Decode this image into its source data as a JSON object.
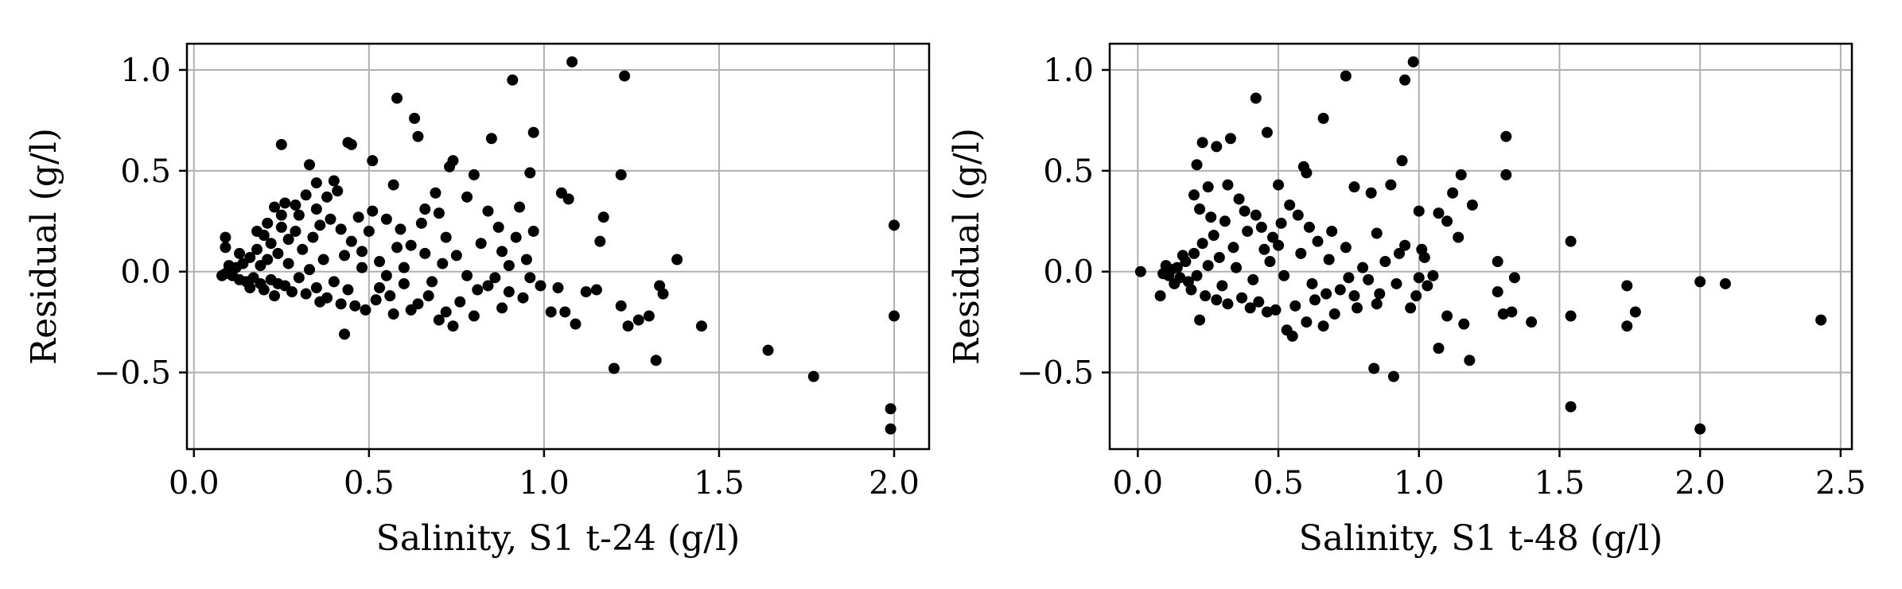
{
  "chart_data": [
    {
      "type": "scatter",
      "xlabel": "Salinity, S1 t-24 (g/l)",
      "ylabel": "Residual (g/l)",
      "xlim": [
        -0.02,
        2.1
      ],
      "ylim": [
        -0.88,
        1.13
      ],
      "xticks": [
        0.0,
        0.5,
        1.0,
        1.5,
        2.0
      ],
      "xtick_labels": [
        "0.0",
        "0.5",
        "1.0",
        "1.5",
        "2.0"
      ],
      "yticks": [
        -0.5,
        0.0,
        0.5,
        1.0
      ],
      "ytick_labels": [
        "−0.5",
        "0.0",
        "0.5",
        "1.0"
      ],
      "grid": true,
      "marker_color": "#000000",
      "points": [
        [
          1.08,
          1.04
        ],
        [
          1.23,
          0.97
        ],
        [
          0.91,
          0.95
        ],
        [
          0.58,
          0.86
        ],
        [
          0.63,
          0.76
        ],
        [
          0.64,
          0.67
        ],
        [
          0.97,
          0.69
        ],
        [
          0.85,
          0.66
        ],
        [
          0.44,
          0.64
        ],
        [
          0.45,
          0.63
        ],
        [
          0.25,
          0.63
        ],
        [
          0.51,
          0.55
        ],
        [
          0.74,
          0.55
        ],
        [
          0.73,
          0.52
        ],
        [
          0.33,
          0.53
        ],
        [
          0.96,
          0.49
        ],
        [
          1.22,
          0.48
        ],
        [
          0.8,
          0.48
        ],
        [
          0.57,
          0.43
        ],
        [
          0.4,
          0.45
        ],
        [
          0.35,
          0.44
        ],
        [
          0.41,
          0.4
        ],
        [
          0.38,
          0.37
        ],
        [
          1.05,
          0.39
        ],
        [
          1.07,
          0.36
        ],
        [
          0.69,
          0.39
        ],
        [
          0.32,
          0.38
        ],
        [
          0.29,
          0.33
        ],
        [
          0.26,
          0.34
        ],
        [
          0.23,
          0.32
        ],
        [
          0.93,
          0.32
        ],
        [
          0.78,
          0.37
        ],
        [
          0.66,
          0.31
        ],
        [
          0.7,
          0.29
        ],
        [
          0.84,
          0.3
        ],
        [
          1.17,
          0.27
        ],
        [
          0.97,
          0.2
        ],
        [
          1.16,
          0.15
        ],
        [
          0.92,
          0.17
        ],
        [
          0.88,
          0.1
        ],
        [
          1.38,
          0.06
        ],
        [
          2.0,
          0.23
        ],
        [
          2.0,
          -0.22
        ],
        [
          1.99,
          -0.68
        ],
        [
          1.99,
          -0.78
        ],
        [
          1.77,
          -0.52
        ],
        [
          1.64,
          -0.39
        ],
        [
          1.45,
          -0.27
        ],
        [
          1.32,
          -0.44
        ],
        [
          1.2,
          -0.48
        ],
        [
          1.34,
          -0.11
        ],
        [
          1.33,
          -0.07
        ],
        [
          1.3,
          -0.22
        ],
        [
          1.27,
          -0.24
        ],
        [
          1.24,
          -0.27
        ],
        [
          1.22,
          -0.17
        ],
        [
          1.15,
          -0.09
        ],
        [
          1.12,
          -0.1
        ],
        [
          1.09,
          -0.26
        ],
        [
          1.06,
          -0.2
        ],
        [
          1.02,
          -0.2
        ],
        [
          1.04,
          -0.08
        ],
        [
          0.99,
          -0.07
        ],
        [
          0.43,
          -0.31
        ],
        [
          0.74,
          -0.27
        ],
        [
          0.7,
          -0.24
        ],
        [
          0.57,
          -0.21
        ],
        [
          0.62,
          -0.19
        ],
        [
          0.49,
          -0.19
        ],
        [
          0.36,
          -0.15
        ],
        [
          0.23,
          -0.12
        ],
        [
          0.95,
          0.06
        ],
        [
          0.9,
          0.03
        ],
        [
          0.86,
          -0.03
        ],
        [
          0.81,
          -0.09
        ],
        [
          0.76,
          -0.15
        ],
        [
          0.67,
          -0.12
        ],
        [
          0.6,
          -0.06
        ],
        [
          0.55,
          -0.02
        ],
        [
          0.53,
          0.05
        ],
        [
          0.48,
          0.1
        ],
        [
          0.45,
          0.15
        ],
        [
          0.42,
          0.21
        ],
        [
          0.39,
          0.26
        ],
        [
          0.36,
          0.23
        ],
        [
          0.34,
          0.17
        ],
        [
          0.31,
          0.11
        ],
        [
          0.29,
          0.2
        ],
        [
          0.27,
          0.16
        ],
        [
          0.25,
          0.22
        ],
        [
          0.24,
          0.09
        ],
        [
          0.22,
          0.14
        ],
        [
          0.21,
          0.06
        ],
        [
          0.2,
          0.18
        ],
        [
          0.19,
          0.03
        ],
        [
          0.18,
          0.11
        ],
        [
          0.17,
          -0.03
        ],
        [
          0.16,
          0.07
        ],
        [
          0.15,
          -0.05
        ],
        [
          0.14,
          0.04
        ],
        [
          0.13,
          -0.04
        ],
        [
          0.12,
          0.02
        ],
        [
          0.11,
          -0.02
        ],
        [
          0.1,
          0.03
        ],
        [
          0.09,
          -0.01
        ],
        [
          0.09,
          0.17
        ],
        [
          0.09,
          0.12
        ],
        [
          0.08,
          -0.02
        ],
        [
          0.13,
          0.09
        ],
        [
          0.16,
          -0.08
        ],
        [
          0.2,
          -0.09
        ],
        [
          0.24,
          -0.06
        ],
        [
          0.28,
          -0.1
        ],
        [
          0.32,
          -0.11
        ],
        [
          0.38,
          -0.13
        ],
        [
          0.42,
          -0.16
        ],
        [
          0.46,
          -0.17
        ],
        [
          0.52,
          -0.14
        ],
        [
          0.56,
          -0.12
        ],
        [
          0.64,
          -0.16
        ],
        [
          0.72,
          -0.2
        ],
        [
          0.8,
          -0.22
        ],
        [
          0.88,
          -0.18
        ],
        [
          0.94,
          -0.13
        ],
        [
          0.84,
          -0.07
        ],
        [
          0.78,
          -0.02
        ],
        [
          0.71,
          0.04
        ],
        [
          0.66,
          0.09
        ],
        [
          0.62,
          0.13
        ],
        [
          0.59,
          0.21
        ],
        [
          0.55,
          0.26
        ],
        [
          0.51,
          0.3
        ],
        [
          0.47,
          0.27
        ],
        [
          0.43,
          0.08
        ],
        [
          0.4,
          -0.05
        ],
        [
          0.37,
          0.06
        ],
        [
          0.33,
          0.01
        ],
        [
          0.3,
          -0.03
        ],
        [
          0.27,
          0.04
        ],
        [
          0.26,
          -0.07
        ],
        [
          0.22,
          -0.04
        ],
        [
          0.19,
          -0.06
        ],
        [
          0.35,
          0.31
        ],
        [
          0.3,
          0.28
        ],
        [
          0.5,
          0.2
        ],
        [
          0.6,
          0.02
        ],
        [
          0.68,
          -0.05
        ],
        [
          0.75,
          0.08
        ],
        [
          0.82,
          0.14
        ],
        [
          0.87,
          0.22
        ],
        [
          0.9,
          -0.1
        ],
        [
          0.96,
          -0.03
        ],
        [
          0.72,
          0.17
        ],
        [
          0.65,
          0.24
        ],
        [
          0.44,
          -0.09
        ],
        [
          0.48,
          0.02
        ],
        [
          0.53,
          -0.08
        ],
        [
          0.58,
          0.12
        ],
        [
          0.35,
          -0.08
        ],
        [
          0.25,
          0.28
        ],
        [
          0.21,
          0.24
        ],
        [
          0.18,
          0.2
        ]
      ]
    },
    {
      "type": "scatter",
      "xlabel": "Salinity, S1 t-48 (g/l)",
      "ylabel": "Residual (g/l)",
      "xlim": [
        -0.1,
        2.54
      ],
      "ylim": [
        -0.88,
        1.13
      ],
      "xticks": [
        0.0,
        0.5,
        1.0,
        1.5,
        2.0,
        2.5
      ],
      "xtick_labels": [
        "0.0",
        "0.5",
        "1.0",
        "1.5",
        "2.0",
        "2.5"
      ],
      "yticks": [
        -0.5,
        0.0,
        0.5,
        1.0
      ],
      "ytick_labels": [
        "−0.5",
        "0.0",
        "0.5",
        "1.0"
      ],
      "grid": true,
      "marker_color": "#000000",
      "points": [
        [
          0.98,
          1.04
        ],
        [
          0.74,
          0.97
        ],
        [
          0.95,
          0.95
        ],
        [
          0.42,
          0.86
        ],
        [
          0.66,
          0.76
        ],
        [
          0.46,
          0.69
        ],
        [
          0.33,
          0.66
        ],
        [
          0.23,
          0.64
        ],
        [
          1.31,
          0.67
        ],
        [
          0.28,
          0.62
        ],
        [
          0.94,
          0.55
        ],
        [
          0.21,
          0.53
        ],
        [
          0.59,
          0.52
        ],
        [
          0.6,
          0.49
        ],
        [
          1.31,
          0.48
        ],
        [
          1.15,
          0.48
        ],
        [
          0.9,
          0.43
        ],
        [
          0.5,
          0.43
        ],
        [
          0.32,
          0.43
        ],
        [
          0.25,
          0.42
        ],
        [
          0.77,
          0.42
        ],
        [
          0.83,
          0.39
        ],
        [
          1.12,
          0.39
        ],
        [
          1.07,
          0.29
        ],
        [
          1.1,
          0.25
        ],
        [
          1.19,
          0.33
        ],
        [
          1.0,
          0.3
        ],
        [
          1.14,
          0.17
        ],
        [
          0.85,
          0.19
        ],
        [
          1.54,
          0.15
        ],
        [
          0.01,
          0.0
        ],
        [
          1.28,
          0.05
        ],
        [
          1.34,
          -0.03
        ],
        [
          1.4,
          -0.25
        ],
        [
          1.33,
          -0.2
        ],
        [
          1.3,
          -0.21
        ],
        [
          1.28,
          -0.1
        ],
        [
          1.18,
          -0.44
        ],
        [
          1.16,
          -0.26
        ],
        [
          1.07,
          -0.38
        ],
        [
          1.54,
          -0.22
        ],
        [
          1.54,
          -0.67
        ],
        [
          1.74,
          -0.07
        ],
        [
          1.74,
          -0.27
        ],
        [
          1.77,
          -0.2
        ],
        [
          2.0,
          -0.05
        ],
        [
          2.09,
          -0.06
        ],
        [
          2.0,
          -0.78
        ],
        [
          2.43,
          -0.24
        ],
        [
          0.84,
          -0.48
        ],
        [
          0.91,
          -0.52
        ],
        [
          0.53,
          -0.29
        ],
        [
          0.55,
          -0.32
        ],
        [
          0.6,
          -0.25
        ],
        [
          0.66,
          -0.27
        ],
        [
          0.22,
          -0.24
        ],
        [
          0.4,
          -0.18
        ],
        [
          0.46,
          -0.2
        ],
        [
          0.08,
          -0.12
        ],
        [
          0.99,
          -0.12
        ],
        [
          1.03,
          -0.07
        ],
        [
          0.97,
          -0.18
        ],
        [
          1.05,
          -0.02
        ],
        [
          1.02,
          0.07
        ],
        [
          1.01,
          0.11
        ],
        [
          0.93,
          0.09
        ],
        [
          0.88,
          0.05
        ],
        [
          0.82,
          -0.04
        ],
        [
          0.77,
          -0.12
        ],
        [
          0.72,
          -0.09
        ],
        [
          0.68,
          0.06
        ],
        [
          0.64,
          0.15
        ],
        [
          0.61,
          0.22
        ],
        [
          0.57,
          0.28
        ],
        [
          0.54,
          0.33
        ],
        [
          0.51,
          0.24
        ],
        [
          0.48,
          0.17
        ],
        [
          0.45,
          0.11
        ],
        [
          0.42,
          0.28
        ],
        [
          0.39,
          0.2
        ],
        [
          0.36,
          0.36
        ],
        [
          0.34,
          0.12
        ],
        [
          0.31,
          0.25
        ],
        [
          0.29,
          0.07
        ],
        [
          0.27,
          0.18
        ],
        [
          0.25,
          0.03
        ],
        [
          0.23,
          0.14
        ],
        [
          0.21,
          -0.02
        ],
        [
          0.2,
          0.09
        ],
        [
          0.18,
          -0.05
        ],
        [
          0.17,
          0.05
        ],
        [
          0.15,
          -0.03
        ],
        [
          0.14,
          0.02
        ],
        [
          0.13,
          -0.06
        ],
        [
          0.12,
          0.01
        ],
        [
          0.11,
          -0.02
        ],
        [
          0.1,
          0.03
        ],
        [
          0.09,
          -0.01
        ],
        [
          0.16,
          0.08
        ],
        [
          0.19,
          -0.09
        ],
        [
          0.24,
          -0.12
        ],
        [
          0.28,
          -0.14
        ],
        [
          0.32,
          -0.16
        ],
        [
          0.37,
          -0.13
        ],
        [
          0.43,
          -0.15
        ],
        [
          0.49,
          -0.19
        ],
        [
          0.56,
          -0.17
        ],
        [
          0.63,
          -0.14
        ],
        [
          0.7,
          -0.21
        ],
        [
          0.78,
          -0.18
        ],
        [
          0.86,
          -0.11
        ],
        [
          0.92,
          -0.06
        ],
        [
          0.8,
          0.02
        ],
        [
          0.74,
          0.12
        ],
        [
          0.69,
          0.2
        ],
        [
          0.58,
          0.09
        ],
        [
          0.52,
          -0.02
        ],
        [
          0.47,
          0.05
        ],
        [
          0.41,
          -0.04
        ],
        [
          0.35,
          0.02
        ],
        [
          0.3,
          -0.07
        ],
        [
          0.26,
          0.27
        ],
        [
          0.22,
          0.31
        ],
        [
          0.2,
          0.38
        ],
        [
          0.38,
          0.3
        ],
        [
          0.44,
          0.22
        ],
        [
          0.5,
          0.13
        ],
        [
          0.62,
          -0.06
        ],
        [
          0.67,
          -0.11
        ],
        [
          0.75,
          -0.03
        ],
        [
          0.85,
          -0.16
        ],
        [
          0.95,
          0.13
        ],
        [
          1.1,
          -0.22
        ],
        [
          1.0,
          -0.03
        ]
      ]
    }
  ]
}
